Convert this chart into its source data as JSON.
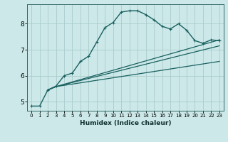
{
  "xlabel": "Humidex (Indice chaleur)",
  "background_color": "#cce8e8",
  "grid_color": "#aacccc",
  "line_color": "#1a6060",
  "xlim": [
    -0.5,
    23.5
  ],
  "ylim": [
    4.65,
    8.75
  ],
  "xticks": [
    0,
    1,
    2,
    3,
    4,
    5,
    6,
    7,
    8,
    9,
    10,
    11,
    12,
    13,
    14,
    15,
    16,
    17,
    18,
    19,
    20,
    21,
    22,
    23
  ],
  "yticks": [
    5,
    6,
    7,
    8
  ],
  "curves": [
    {
      "x": [
        0,
        1,
        2,
        3,
        4,
        5,
        6,
        7,
        8,
        9,
        10,
        11,
        12,
        13,
        14,
        15,
        16,
        17,
        18,
        19,
        20,
        21,
        22,
        23
      ],
      "y": [
        4.83,
        4.83,
        5.45,
        5.6,
        6.0,
        6.1,
        6.55,
        6.75,
        7.3,
        7.85,
        8.05,
        8.45,
        8.5,
        8.5,
        8.35,
        8.15,
        7.9,
        7.8,
        8.0,
        7.75,
        7.35,
        7.25,
        7.38,
        7.35
      ],
      "has_marker": true,
      "markersize": 2.5,
      "linewidth": 1.0
    },
    {
      "x": [
        2,
        3,
        23
      ],
      "y": [
        5.45,
        5.58,
        7.38
      ],
      "has_marker": false,
      "markersize": 0,
      "linewidth": 0.9
    },
    {
      "x": [
        2,
        3,
        23
      ],
      "y": [
        5.45,
        5.58,
        7.15
      ],
      "has_marker": false,
      "markersize": 0,
      "linewidth": 0.9
    },
    {
      "x": [
        2,
        3,
        23
      ],
      "y": [
        5.45,
        5.58,
        6.55
      ],
      "has_marker": false,
      "markersize": 0,
      "linewidth": 0.9
    }
  ]
}
